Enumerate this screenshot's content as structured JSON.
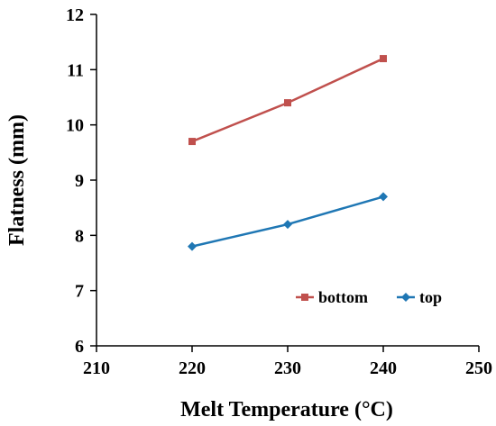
{
  "chart_data": {
    "type": "line",
    "title": "",
    "xlabel": "Melt Temperature (°C)",
    "ylabel": "Flatness (mm)",
    "xlim": [
      210,
      250
    ],
    "ylim": [
      6,
      12
    ],
    "xticks": [
      210,
      220,
      230,
      240,
      250
    ],
    "yticks": [
      6,
      7,
      8,
      9,
      10,
      11,
      12
    ],
    "grid": false,
    "legend_position": "bottom-right",
    "series": [
      {
        "name": "bottom",
        "color": "#C0504D",
        "marker": "square",
        "x": [
          220,
          230,
          240
        ],
        "y": [
          9.7,
          10.4,
          11.2
        ]
      },
      {
        "name": "top",
        "color": "#1F77B4",
        "marker": "diamond",
        "x": [
          220,
          230,
          240
        ],
        "y": [
          7.8,
          8.2,
          8.7
        ]
      }
    ]
  }
}
